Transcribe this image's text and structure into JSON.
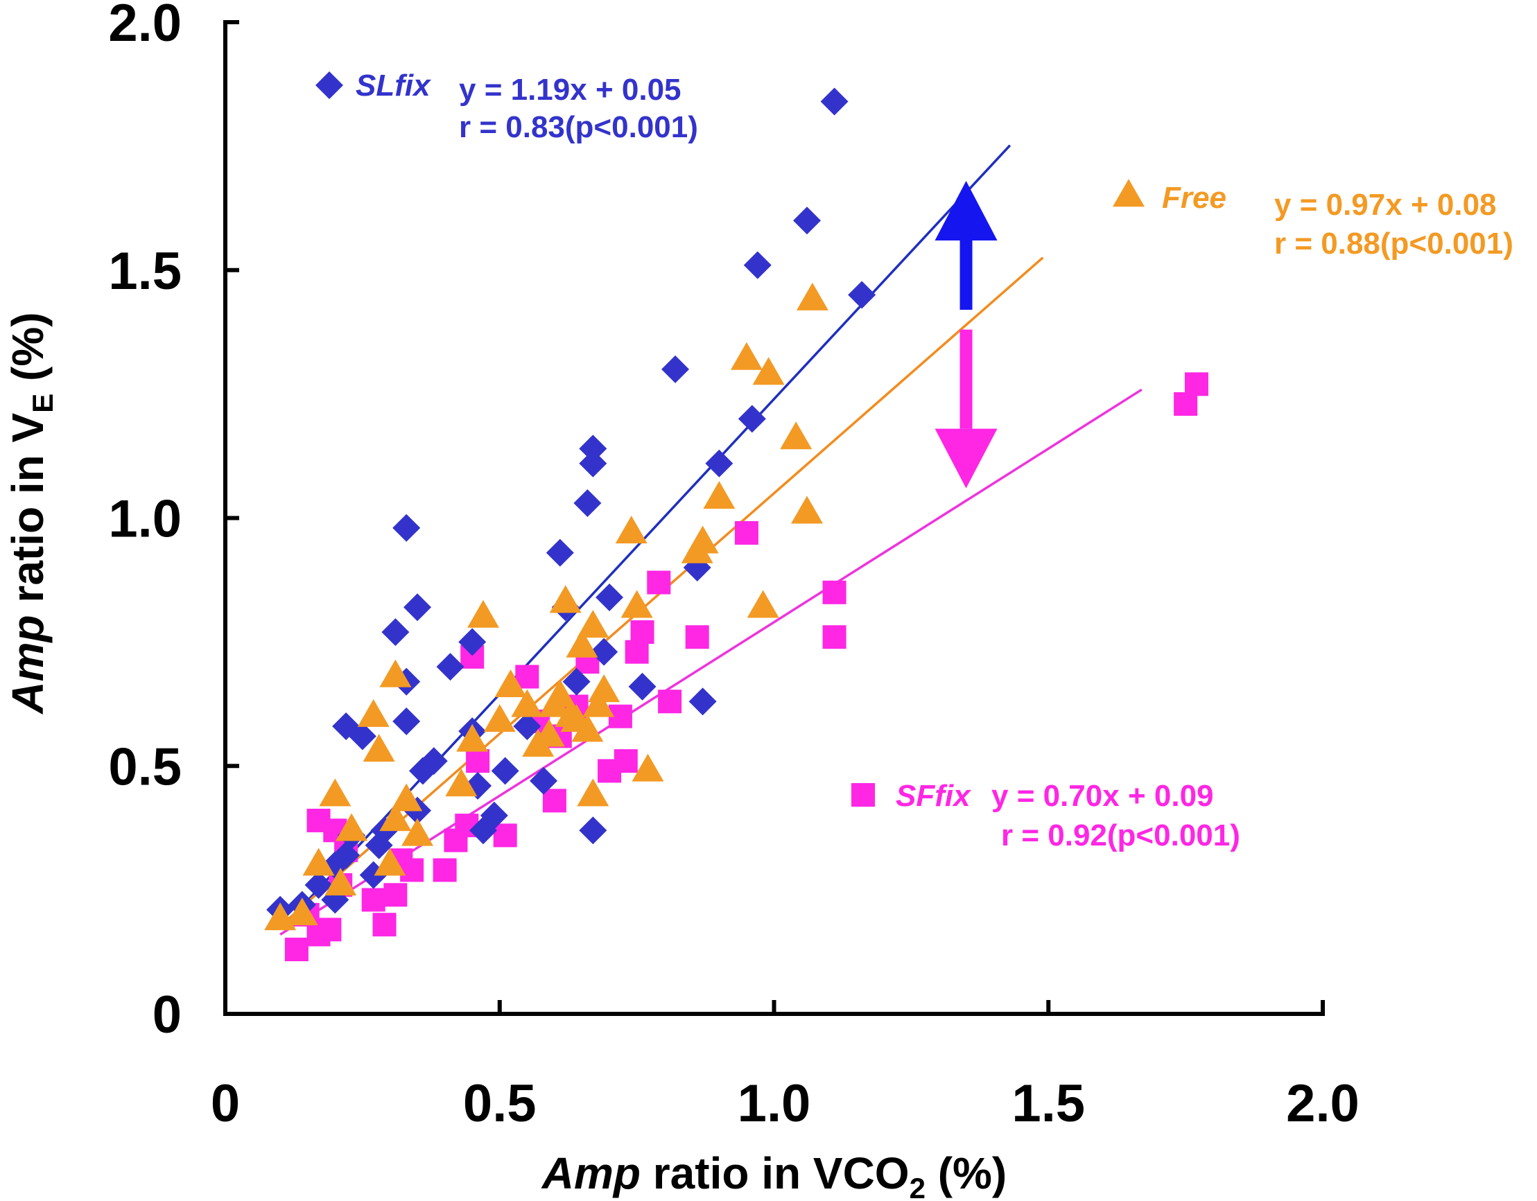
{
  "chart_data": {
    "type": "scatter",
    "title": "",
    "xlabel": {
      "italic": "Amp",
      "text": " ratio in VCO",
      "sub": "2",
      "suffix": " (%)"
    },
    "ylabel": {
      "italic": "Amp",
      "text": " ratio in V",
      "sub": "E",
      "suffix": " (%)"
    },
    "xlim": [
      0,
      2.0
    ],
    "ylim": [
      0,
      2.0
    ],
    "xticks": [
      {
        "value": 0,
        "label": "0"
      },
      {
        "value": 0.5,
        "label": "0.5"
      },
      {
        "value": 1.0,
        "label": "1.0"
      },
      {
        "value": 1.5,
        "label": "1.5"
      },
      {
        "value": 2.0,
        "label": "2.0"
      }
    ],
    "yticks": [
      {
        "value": 0,
        "label": "0"
      },
      {
        "value": 0.5,
        "label": "0.5"
      },
      {
        "value": 1.0,
        "label": "1.0"
      },
      {
        "value": 1.5,
        "label": "1.5"
      },
      {
        "value": 2.0,
        "label": "2.0"
      }
    ],
    "grid": false,
    "series": [
      {
        "name": "SLfix",
        "marker": "diamond",
        "color": "#3333cc",
        "line_color": "#1f2fbf",
        "equation": "y = 1.19x + 0.05",
        "r_text": "r = 0.83(p<0.001)",
        "fit": {
          "slope": 1.19,
          "intercept": 0.05,
          "x_range": [
            0.12,
            1.43
          ]
        },
        "points": [
          [
            0.1,
            0.21
          ],
          [
            0.14,
            0.22
          ],
          [
            0.17,
            0.26
          ],
          [
            0.2,
            0.3
          ],
          [
            0.2,
            0.23
          ],
          [
            0.22,
            0.58
          ],
          [
            0.22,
            0.32
          ],
          [
            0.23,
            0.36
          ],
          [
            0.25,
            0.56
          ],
          [
            0.27,
            0.28
          ],
          [
            0.28,
            0.34
          ],
          [
            0.29,
            0.37
          ],
          [
            0.31,
            0.77
          ],
          [
            0.33,
            0.98
          ],
          [
            0.33,
            0.67
          ],
          [
            0.33,
            0.59
          ],
          [
            0.35,
            0.82
          ],
          [
            0.35,
            0.41
          ],
          [
            0.36,
            0.49
          ],
          [
            0.38,
            0.51
          ],
          [
            0.41,
            0.7
          ],
          [
            0.45,
            0.75
          ],
          [
            0.45,
            0.57
          ],
          [
            0.46,
            0.46
          ],
          [
            0.47,
            0.37
          ],
          [
            0.49,
            0.4
          ],
          [
            0.51,
            0.49
          ],
          [
            0.55,
            0.58
          ],
          [
            0.58,
            0.47
          ],
          [
            0.61,
            0.93
          ],
          [
            0.62,
            0.82
          ],
          [
            0.64,
            0.67
          ],
          [
            0.66,
            1.03
          ],
          [
            0.67,
            1.14
          ],
          [
            0.67,
            1.11
          ],
          [
            0.67,
            0.37
          ],
          [
            0.69,
            0.73
          ],
          [
            0.7,
            0.84
          ],
          [
            0.76,
            0.66
          ],
          [
            0.82,
            1.3
          ],
          [
            0.86,
            0.9
          ],
          [
            0.87,
            0.63
          ],
          [
            0.9,
            1.11
          ],
          [
            0.96,
            1.2
          ],
          [
            0.97,
            1.51
          ],
          [
            1.06,
            1.6
          ],
          [
            1.11,
            1.84
          ],
          [
            1.16,
            1.45
          ]
        ]
      },
      {
        "name": "Free",
        "marker": "triangle",
        "color": "#f39a24",
        "line_color": "#f28c1e",
        "equation": "y = 0.97x + 0.08",
        "r_text": "r = 0.88(p<0.001)",
        "fit": {
          "slope": 0.97,
          "intercept": 0.08,
          "x_range": [
            0.1,
            1.49
          ]
        },
        "points": [
          [
            0.1,
            0.19
          ],
          [
            0.14,
            0.2
          ],
          [
            0.17,
            0.3
          ],
          [
            0.2,
            0.44
          ],
          [
            0.21,
            0.26
          ],
          [
            0.23,
            0.37
          ],
          [
            0.27,
            0.6
          ],
          [
            0.28,
            0.53
          ],
          [
            0.3,
            0.3
          ],
          [
            0.31,
            0.68
          ],
          [
            0.31,
            0.39
          ],
          [
            0.33,
            0.43
          ],
          [
            0.35,
            0.36
          ],
          [
            0.43,
            0.46
          ],
          [
            0.45,
            0.55
          ],
          [
            0.47,
            0.8
          ],
          [
            0.5,
            0.59
          ],
          [
            0.52,
            0.66
          ],
          [
            0.55,
            0.62
          ],
          [
            0.57,
            0.54
          ],
          [
            0.59,
            0.56
          ],
          [
            0.6,
            0.62
          ],
          [
            0.61,
            0.64
          ],
          [
            0.62,
            0.83
          ],
          [
            0.63,
            0.6
          ],
          [
            0.64,
            0.59
          ],
          [
            0.65,
            0.74
          ],
          [
            0.66,
            0.57
          ],
          [
            0.67,
            0.78
          ],
          [
            0.67,
            0.44
          ],
          [
            0.68,
            0.62
          ],
          [
            0.69,
            0.65
          ],
          [
            0.74,
            0.97
          ],
          [
            0.75,
            0.82
          ],
          [
            0.77,
            0.49
          ],
          [
            0.86,
            0.93
          ],
          [
            0.87,
            0.95
          ],
          [
            0.9,
            1.04
          ],
          [
            0.95,
            1.32
          ],
          [
            0.98,
            0.82
          ],
          [
            0.99,
            1.29
          ],
          [
            1.04,
            1.16
          ],
          [
            1.06,
            1.01
          ],
          [
            1.07,
            1.44
          ]
        ]
      },
      {
        "name": "SFfix",
        "marker": "square",
        "color": "#ff26e4",
        "line_color": "#ee33dd",
        "equation": "y = 0.70x + 0.09",
        "r_text": "r = 0.92(p<0.001)",
        "fit": {
          "slope": 0.7,
          "intercept": 0.09,
          "x_range": [
            0.1,
            1.67
          ]
        },
        "points": [
          [
            0.13,
            0.13
          ],
          [
            0.15,
            0.2
          ],
          [
            0.17,
            0.16
          ],
          [
            0.17,
            0.39
          ],
          [
            0.19,
            0.17
          ],
          [
            0.2,
            0.37
          ],
          [
            0.21,
            0.26
          ],
          [
            0.22,
            0.33
          ],
          [
            0.27,
            0.23
          ],
          [
            0.29,
            0.18
          ],
          [
            0.31,
            0.24
          ],
          [
            0.32,
            0.31
          ],
          [
            0.34,
            0.29
          ],
          [
            0.4,
            0.29
          ],
          [
            0.42,
            0.35
          ],
          [
            0.44,
            0.38
          ],
          [
            0.45,
            0.72
          ],
          [
            0.46,
            0.51
          ],
          [
            0.51,
            0.36
          ],
          [
            0.55,
            0.68
          ],
          [
            0.57,
            0.59
          ],
          [
            0.6,
            0.43
          ],
          [
            0.61,
            0.56
          ],
          [
            0.64,
            0.62
          ],
          [
            0.66,
            0.71
          ],
          [
            0.7,
            0.49
          ],
          [
            0.72,
            0.6
          ],
          [
            0.73,
            0.51
          ],
          [
            0.75,
            0.73
          ],
          [
            0.76,
            0.77
          ],
          [
            0.79,
            0.87
          ],
          [
            0.81,
            0.63
          ],
          [
            0.86,
            0.76
          ],
          [
            0.95,
            0.97
          ],
          [
            1.11,
            0.85
          ],
          [
            1.11,
            0.76
          ],
          [
            1.75,
            1.23
          ],
          [
            1.77,
            1.27
          ]
        ]
      }
    ],
    "arrows": [
      {
        "direction": "up",
        "color": "#1515f0",
        "x": 1.35,
        "y_from": 1.42,
        "y_to": 1.68
      },
      {
        "direction": "down",
        "color": "#ff26e4",
        "x": 1.35,
        "y_from": 1.38,
        "y_to": 1.06
      }
    ]
  }
}
